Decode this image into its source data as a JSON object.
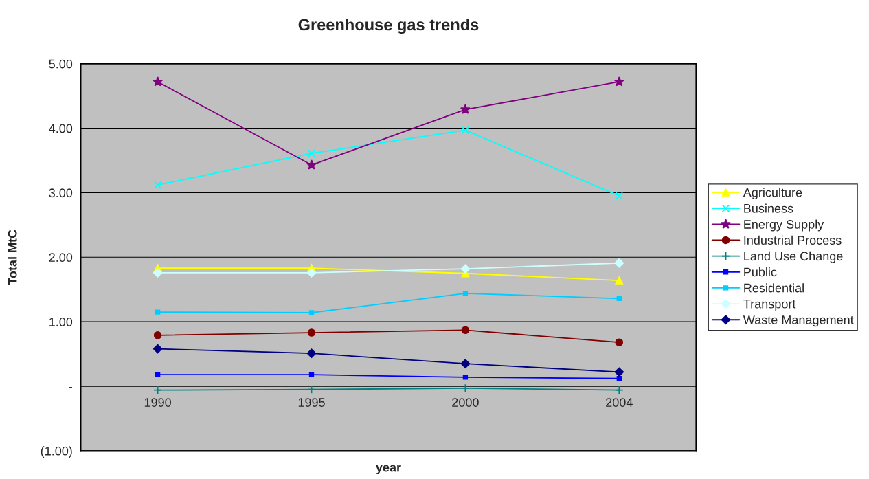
{
  "chart_data": {
    "type": "line",
    "title": "Greenhouse gas trends",
    "xlabel": "year",
    "ylabel": "Total MtC",
    "categories": [
      "1990",
      "1995",
      "2000",
      "2004"
    ],
    "series": [
      {
        "name": "Agriculture",
        "color": "#ffff00",
        "marker": "triangle",
        "values": [
          1.83,
          1.83,
          1.75,
          1.64
        ]
      },
      {
        "name": "Business",
        "color": "#00ffff",
        "marker": "cross",
        "values": [
          3.12,
          3.61,
          3.97,
          2.95
        ]
      },
      {
        "name": "Energy Supply",
        "color": "#800080",
        "marker": "star",
        "values": [
          4.72,
          3.43,
          4.29,
          4.72
        ]
      },
      {
        "name": "Industrial Process",
        "color": "#800000",
        "marker": "circle",
        "values": [
          0.79,
          0.83,
          0.87,
          0.68
        ]
      },
      {
        "name": "Land Use Change",
        "color": "#008080",
        "marker": "plus",
        "values": [
          -0.06,
          -0.05,
          -0.03,
          -0.06
        ]
      },
      {
        "name": "Public",
        "color": "#0000ff",
        "marker": "square",
        "values": [
          0.18,
          0.18,
          0.14,
          0.12
        ]
      },
      {
        "name": "Residential",
        "color": "#00ccff",
        "marker": "square",
        "values": [
          1.15,
          1.14,
          1.44,
          1.36
        ]
      },
      {
        "name": "Transport",
        "color": "#ccffff",
        "marker": "diamond",
        "values": [
          1.76,
          1.76,
          1.82,
          1.91
        ]
      },
      {
        "name": "Waste Management",
        "color": "#000080",
        "marker": "diamond",
        "values": [
          0.58,
          0.51,
          0.35,
          0.22
        ]
      }
    ],
    "ylim": [
      -1,
      5
    ],
    "yticks": [
      {
        "value": -1,
        "label": "(1.00)"
      },
      {
        "value": 0,
        "label": "-"
      },
      {
        "value": 1,
        "label": "1.00"
      },
      {
        "value": 2,
        "label": "2.00"
      },
      {
        "value": 3,
        "label": "3.00"
      },
      {
        "value": 4,
        "label": "4.00"
      },
      {
        "value": 5,
        "label": "5.00"
      }
    ],
    "grid": "y",
    "legend": "right"
  }
}
